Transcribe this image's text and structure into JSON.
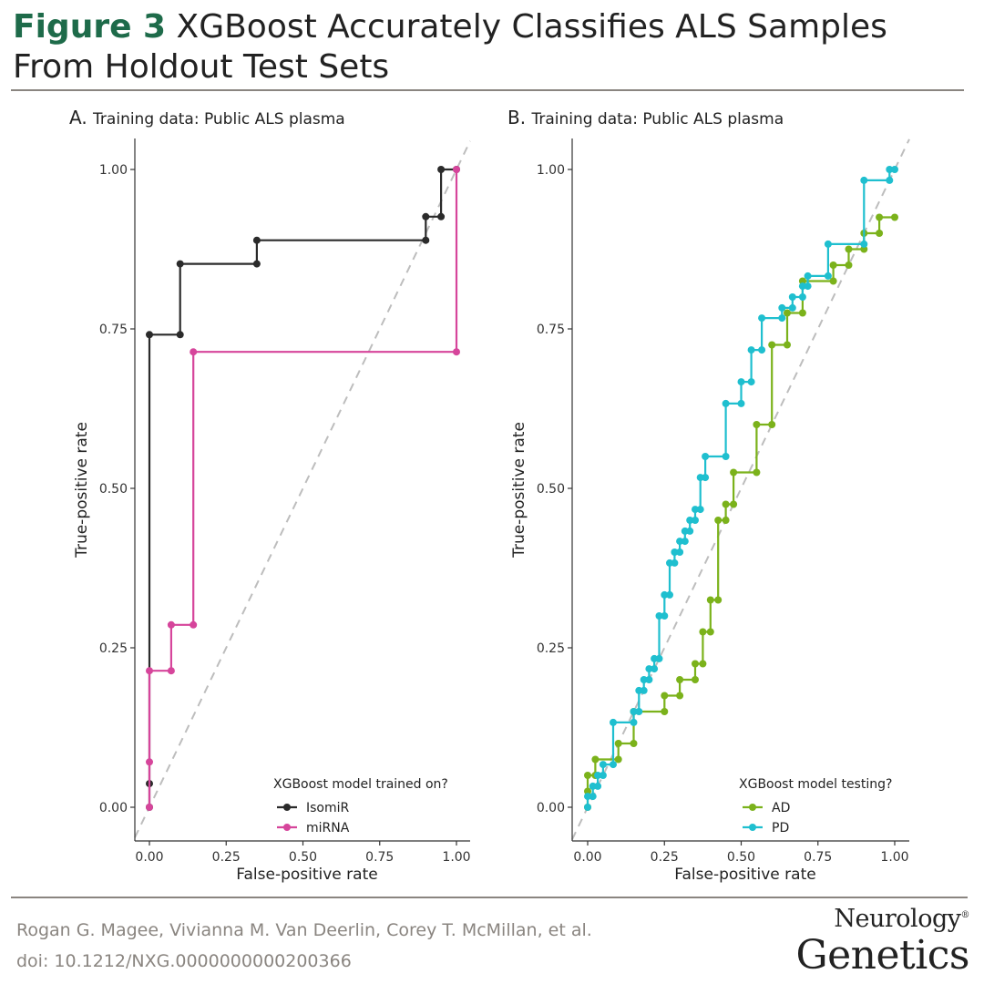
{
  "header": {
    "figure_label": "Figure 3",
    "title_text": "XGBoost Accurately Classifies ALS Samples From Holdout Test Sets"
  },
  "footer": {
    "authors": "Rogan G. Magee, Vivianna M. Van Deerlin, Corey T. McMillan, et al.",
    "doi": "doi: 10.1212/NXG.0000000000200366"
  },
  "journal": {
    "line1": "Neurology",
    "mark": "®",
    "line2": "Genetics"
  },
  "colors": {
    "isomir": "#2b2b2b",
    "mirna": "#d6459b",
    "ad": "#7bb21b",
    "pd": "#1fbfcf",
    "diagonal": "#bdbdbd",
    "axis": "#333333"
  },
  "chart_data": [
    {
      "type": "line",
      "panel": "A.",
      "title": "Training data: Public ALS plasma",
      "xlabel": "False-positive rate",
      "ylabel": "True-positive rate",
      "xlim": [
        0,
        1
      ],
      "ylim": [
        0,
        1
      ],
      "xticks": [
        "0.00",
        "0.25",
        "0.50",
        "0.75",
        "1.00"
      ],
      "yticks": [
        "0.00",
        "0.25",
        "0.50",
        "0.75",
        "1.00"
      ],
      "legend_title": "XGBoost model trained on?",
      "legend_position": "bottom-right",
      "series": [
        {
          "name": "IsomiR",
          "color_key": "isomir",
          "x": [
            0,
            0,
            0,
            0.1,
            0.1,
            0.35,
            0.35,
            0.9,
            0.9,
            0.95,
            0.95,
            1.0
          ],
          "y": [
            0,
            0.037,
            0.741,
            0.741,
            0.852,
            0.852,
            0.889,
            0.889,
            0.926,
            0.926,
            1.0,
            1.0
          ]
        },
        {
          "name": "miRNA",
          "color_key": "mirna",
          "x": [
            0,
            0,
            0,
            0.071,
            0.071,
            0.143,
            0.143,
            1.0,
            1.0
          ],
          "y": [
            0,
            0.071,
            0.214,
            0.214,
            0.286,
            0.286,
            0.714,
            0.714,
            1.0
          ]
        }
      ]
    },
    {
      "type": "line",
      "panel": "B.",
      "title": "Training data: Public ALS plasma",
      "xlabel": "False-positive rate",
      "ylabel": "True-positive rate",
      "xlim": [
        0,
        1
      ],
      "ylim": [
        0,
        1
      ],
      "xticks": [
        "0.00",
        "0.25",
        "0.50",
        "0.75",
        "1.00"
      ],
      "yticks": [
        "0.00",
        "0.25",
        "0.50",
        "0.75",
        "1.00"
      ],
      "legend_title": "XGBoost model testing?",
      "legend_position": "bottom-right",
      "series": [
        {
          "name": "AD",
          "color_key": "ad",
          "x": [
            0,
            0,
            0,
            0.025,
            0.025,
            0.1,
            0.1,
            0.15,
            0.15,
            0.25,
            0.25,
            0.3,
            0.3,
            0.35,
            0.35,
            0.375,
            0.375,
            0.4,
            0.4,
            0.425,
            0.425,
            0.45,
            0.45,
            0.475,
            0.475,
            0.55,
            0.55,
            0.6,
            0.6,
            0.65,
            0.65,
            0.7,
            0.7,
            0.8,
            0.8,
            0.85,
            0.85,
            0.9,
            0.9,
            0.95,
            0.95,
            1.0
          ],
          "y": [
            0,
            0.025,
            0.05,
            0.05,
            0.075,
            0.075,
            0.1,
            0.1,
            0.15,
            0.15,
            0.175,
            0.175,
            0.2,
            0.2,
            0.225,
            0.225,
            0.275,
            0.275,
            0.325,
            0.325,
            0.45,
            0.45,
            0.475,
            0.475,
            0.525,
            0.525,
            0.6,
            0.6,
            0.725,
            0.725,
            0.775,
            0.775,
            0.825,
            0.825,
            0.85,
            0.85,
            0.875,
            0.875,
            0.9,
            0.9,
            0.925,
            0.925
          ]
        },
        {
          "name": "PD",
          "color_key": "pd",
          "x": [
            0,
            0,
            0.017,
            0.017,
            0.033,
            0.033,
            0.05,
            0.05,
            0.083,
            0.083,
            0.15,
            0.15,
            0.167,
            0.167,
            0.183,
            0.183,
            0.2,
            0.2,
            0.217,
            0.217,
            0.233,
            0.233,
            0.25,
            0.25,
            0.267,
            0.267,
            0.283,
            0.283,
            0.3,
            0.3,
            0.317,
            0.317,
            0.333,
            0.333,
            0.35,
            0.35,
            0.367,
            0.367,
            0.383,
            0.383,
            0.45,
            0.45,
            0.5,
            0.5,
            0.533,
            0.533,
            0.567,
            0.567,
            0.633,
            0.633,
            0.667,
            0.667,
            0.7,
            0.7,
            0.717,
            0.717,
            0.783,
            0.783,
            0.9,
            0.9,
            0.983,
            0.983,
            1.0
          ],
          "y": [
            0,
            0.017,
            0.017,
            0.033,
            0.033,
            0.05,
            0.05,
            0.067,
            0.067,
            0.133,
            0.133,
            0.15,
            0.15,
            0.183,
            0.183,
            0.2,
            0.2,
            0.217,
            0.217,
            0.233,
            0.233,
            0.3,
            0.3,
            0.333,
            0.333,
            0.383,
            0.383,
            0.4,
            0.4,
            0.417,
            0.417,
            0.433,
            0.433,
            0.45,
            0.45,
            0.467,
            0.467,
            0.517,
            0.517,
            0.55,
            0.55,
            0.633,
            0.633,
            0.667,
            0.667,
            0.717,
            0.717,
            0.767,
            0.767,
            0.783,
            0.783,
            0.8,
            0.8,
            0.817,
            0.817,
            0.833,
            0.833,
            0.883,
            0.883,
            0.983,
            0.983,
            1.0,
            1.0
          ]
        }
      ]
    }
  ]
}
